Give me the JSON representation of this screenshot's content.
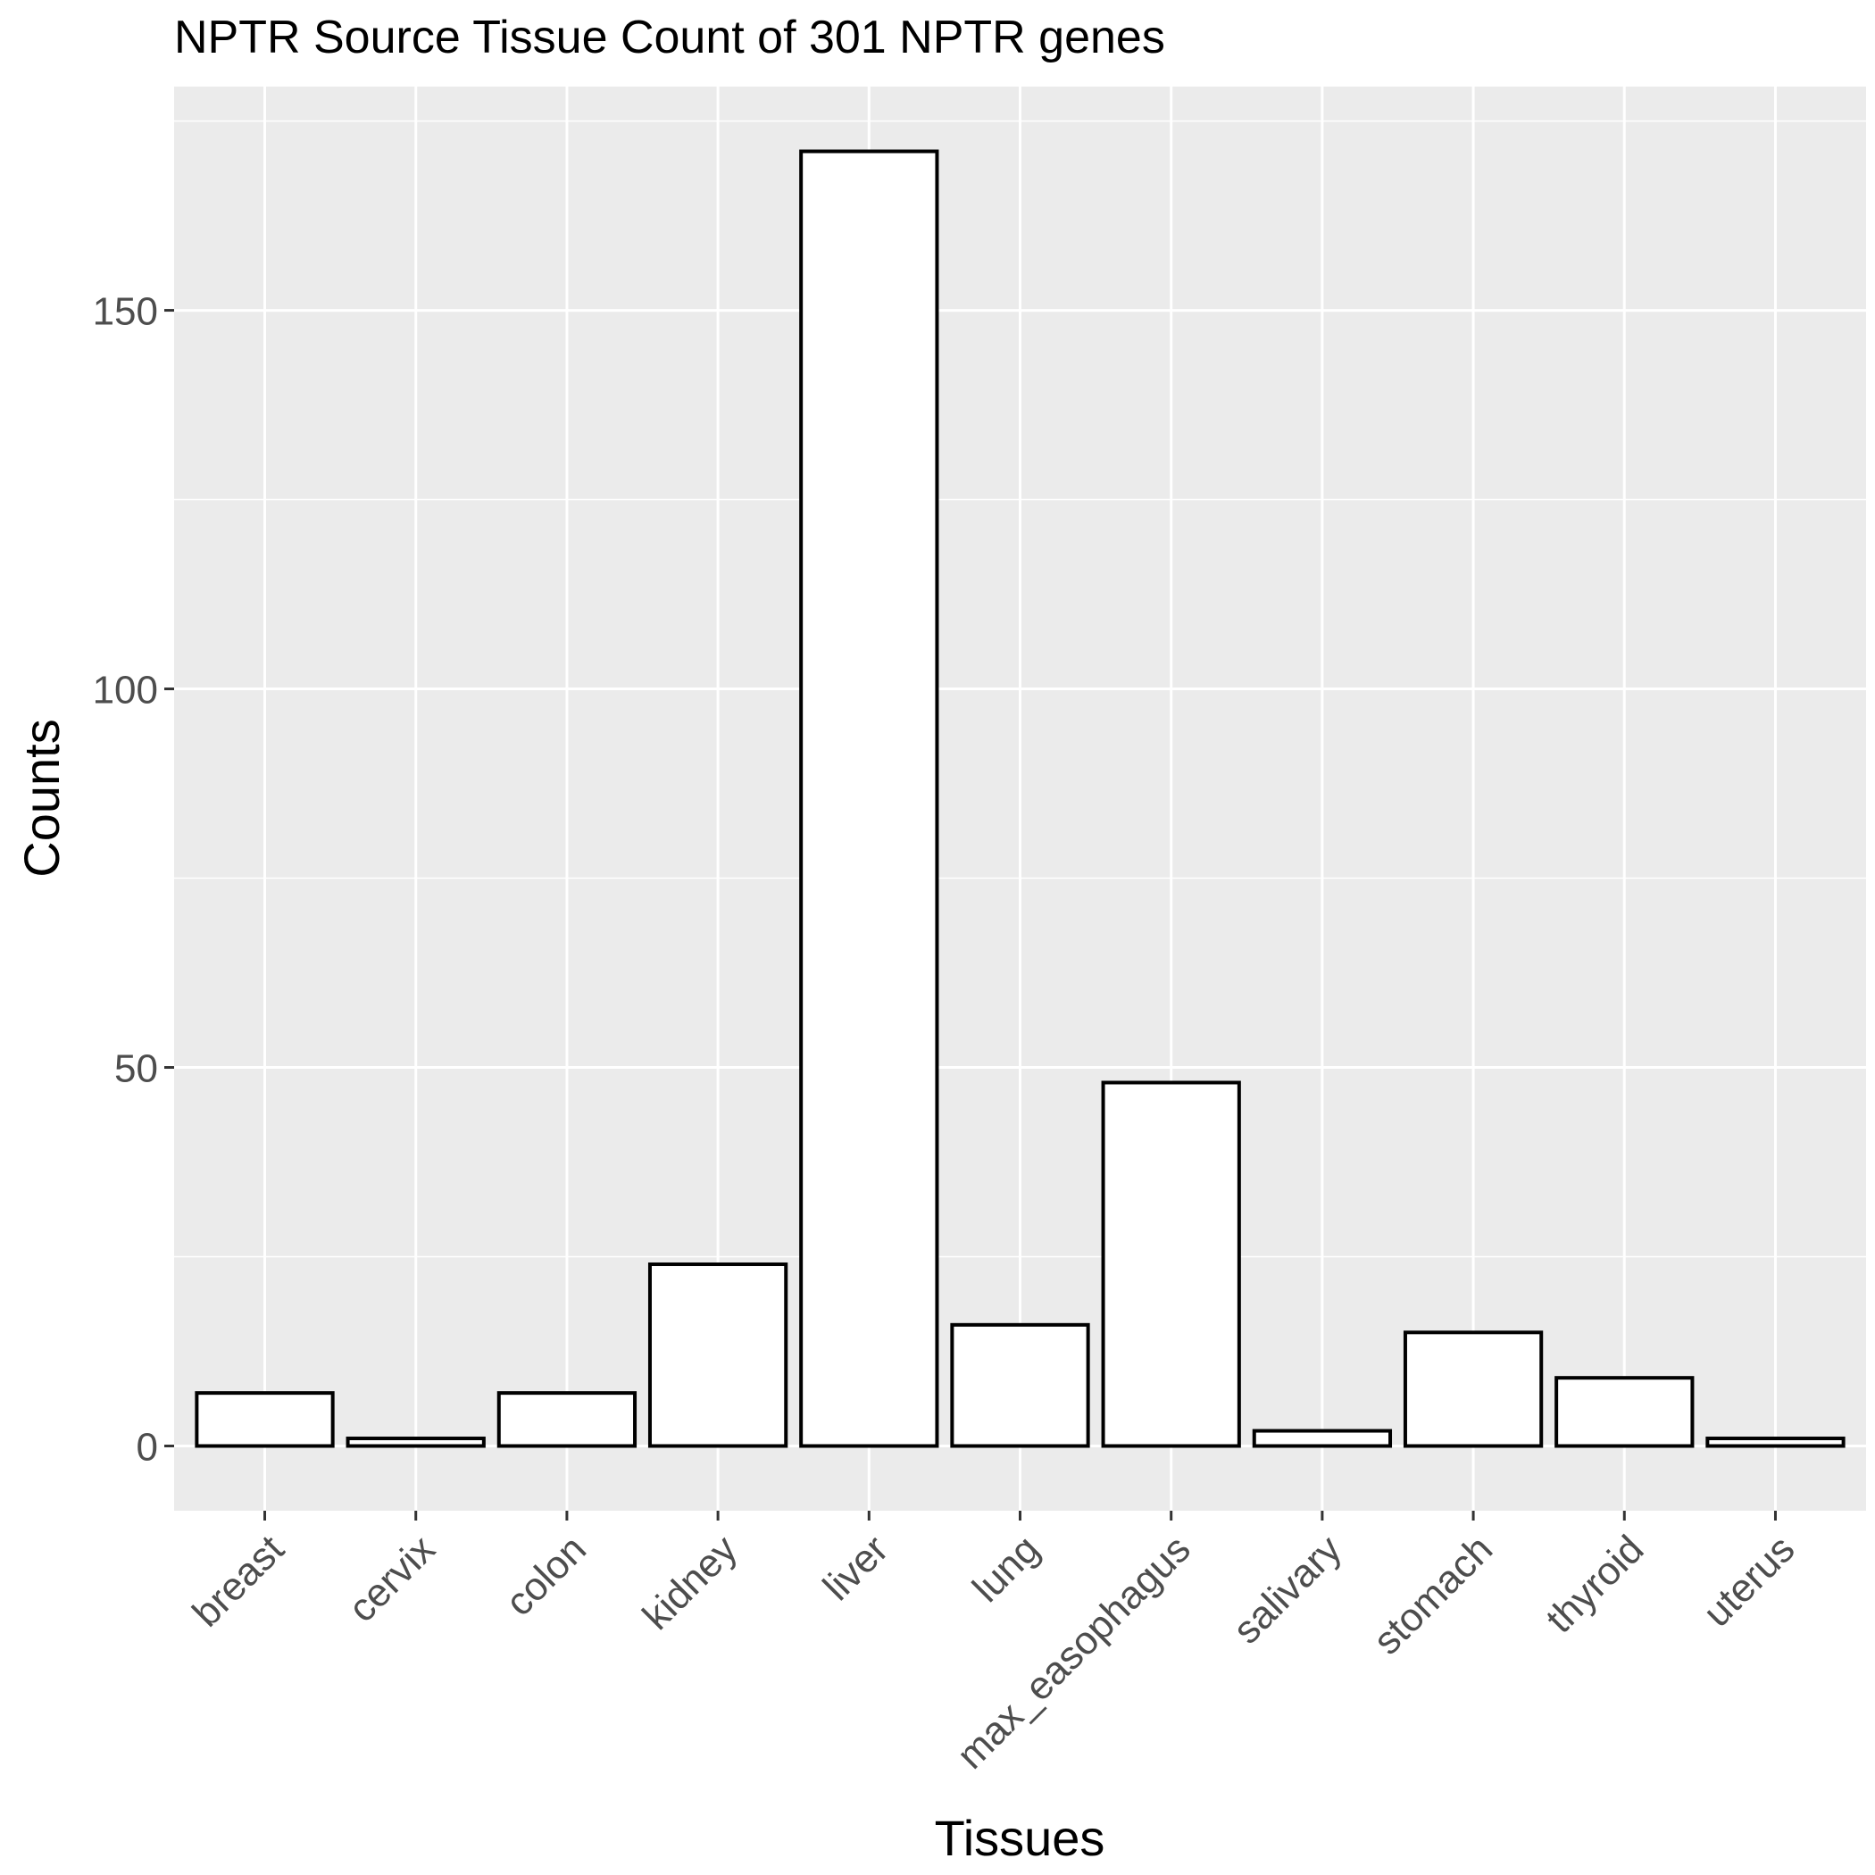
{
  "chart_data": {
    "type": "bar",
    "title": "NPTR Source Tissue Count of 301 NPTR genes",
    "xlabel": "Tissues",
    "ylabel": "Counts",
    "categories": [
      "breast",
      "cervix",
      "colon",
      "kidney",
      "liver",
      "lung",
      "max_easophagus",
      "salivary",
      "stomach",
      "thyroid",
      "uterus"
    ],
    "values": [
      7,
      1,
      7,
      24,
      171,
      16,
      48,
      2,
      15,
      9,
      1
    ],
    "ylim": [
      -8.55,
      179.55
    ],
    "yticks": [
      0,
      50,
      100,
      150
    ],
    "ytick_labels": [
      "0",
      "50",
      "100",
      "150"
    ],
    "grid": true,
    "legend": "none",
    "colors": {
      "panel_background": "#ebebeb",
      "grid_line": "#ffffff",
      "bar_fill": "#ffffff",
      "bar_outline": "#000000",
      "tick_label": "#4d4d4d",
      "axis_title": "#000000",
      "tick_mark": "#333333"
    }
  }
}
